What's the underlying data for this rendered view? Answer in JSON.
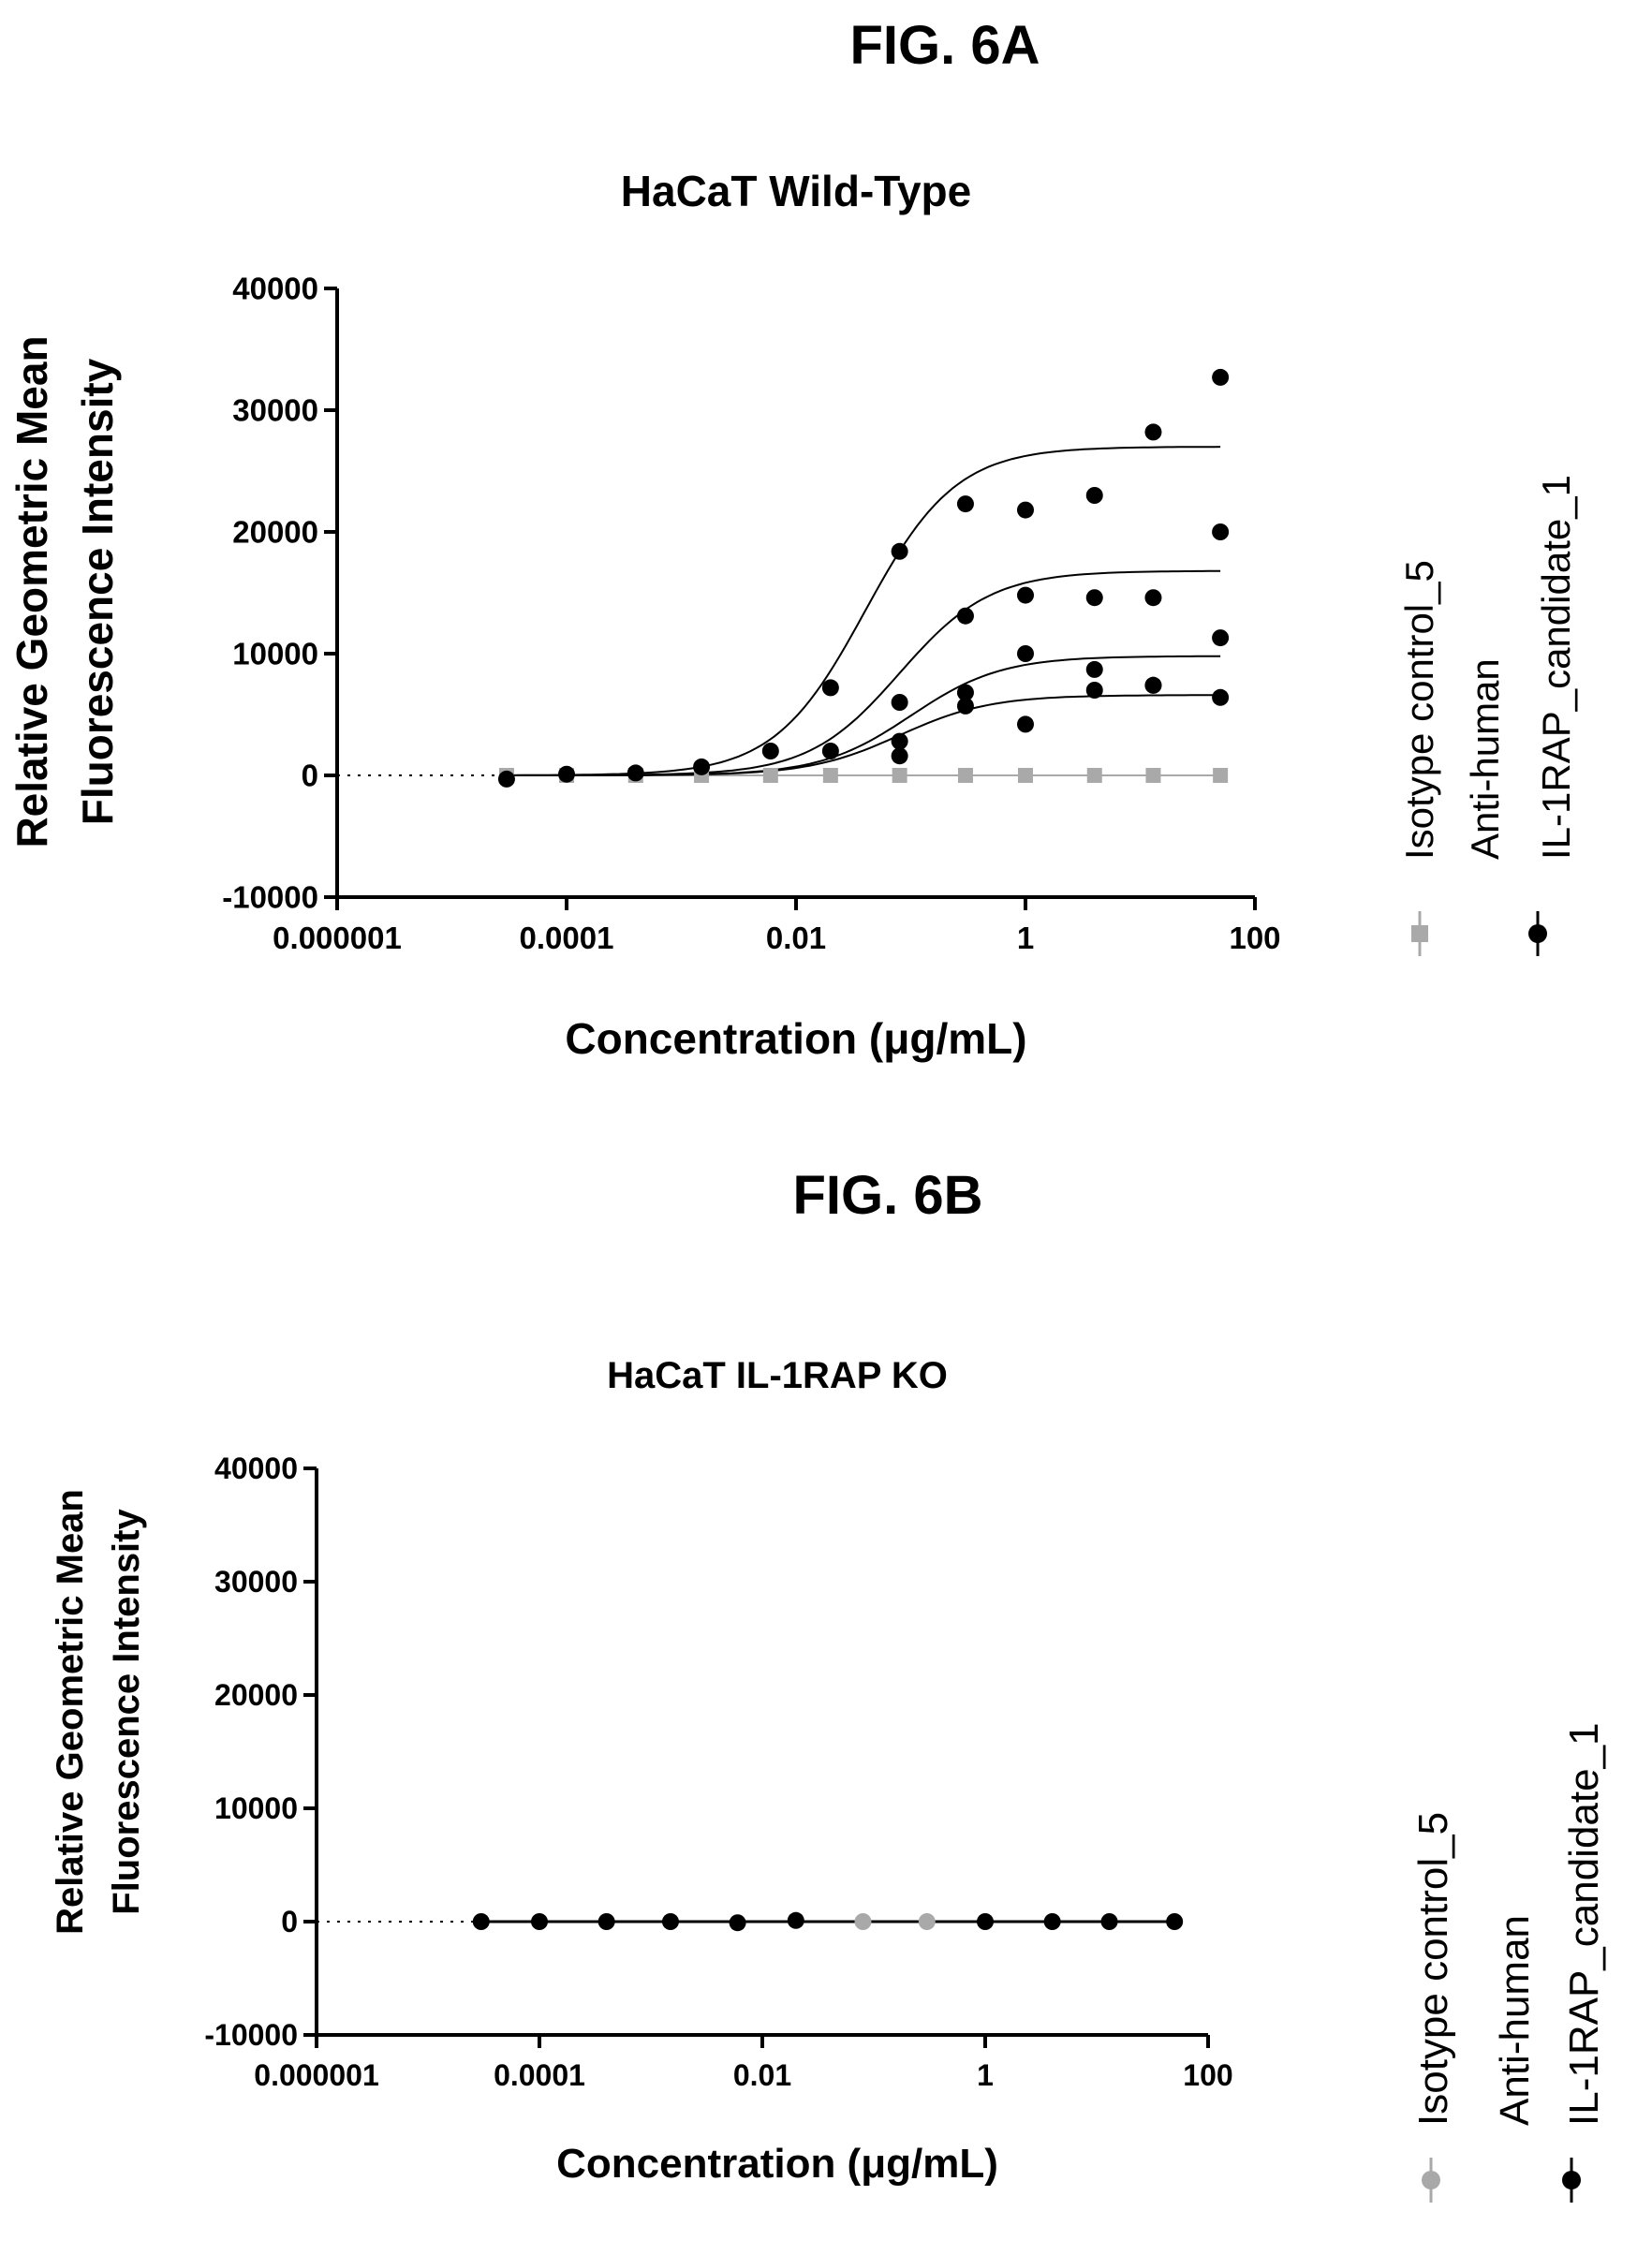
{
  "figure_labels": {
    "a": "FIG. 6A",
    "b": "FIG. 6B"
  },
  "colors": {
    "isotype": "#a9a9a9",
    "candidate": "#000000"
  },
  "chart_data": [
    {
      "type": "scatter",
      "title": "HaCaT Wild-Type",
      "xlabel": "Concentration (μg/mL)",
      "ylabel_lines": [
        "Relative Geometric Mean",
        "Fluorescence Intensity"
      ],
      "x_scale": "log",
      "xlim": [
        1e-06,
        100
      ],
      "ylim": [
        -10000,
        40000
      ],
      "x_ticks": [
        1e-06,
        0.0001,
        0.01,
        1,
        100
      ],
      "x_tick_labels": [
        "0.000001",
        "0.0001",
        "0.01",
        "1",
        "100"
      ],
      "y_ticks": [
        -10000,
        0,
        10000,
        20000,
        30000,
        40000
      ],
      "y_tick_labels": [
        "-10000",
        "0",
        "10000",
        "20000",
        "30000",
        "40000"
      ],
      "baseline": {
        "y": 0,
        "style": "dotted",
        "from_x": 1e-06,
        "to_x": 3e-05
      },
      "legend_position": "right",
      "series": [
        {
          "name": "Isotype control_5",
          "marker": "square",
          "color": "#a9a9a9",
          "x": [
            3e-05,
            0.0001,
            0.0004,
            0.0015,
            0.006,
            0.02,
            0.08,
            0.3,
            1,
            4,
            13,
            50
          ],
          "y": [
            0,
            0,
            0,
            0,
            0,
            0,
            0,
            0,
            0,
            0,
            0,
            0
          ]
        },
        {
          "name_lines": [
            "Anti-human",
            "IL-1RAP_candidate_1"
          ],
          "marker": "circle",
          "color": "#000000",
          "x": [
            3e-05,
            0.0001,
            0.0004,
            0.0015,
            0.006,
            0.02,
            0.08,
            0.3,
            1,
            4,
            13,
            50,
            0.02,
            0.08,
            0.3,
            1,
            4,
            13,
            50,
            0.08,
            0.3,
            1,
            4,
            13,
            50,
            0.08,
            0.3,
            1,
            4,
            13,
            50
          ],
          "y": [
            -300,
            100,
            200,
            700,
            2000,
            7200,
            18400,
            22300,
            21800,
            23000,
            28200,
            32700,
            2000,
            6000,
            13100,
            14800,
            14600,
            14600,
            20000,
            2800,
            6800,
            10000,
            8700,
            7400,
            11300,
            1600,
            5700,
            4200,
            7000,
            7400,
            6400
          ]
        }
      ],
      "curves": [
        {
          "top": 27000,
          "ec50": 0.04,
          "hill": 1.1
        },
        {
          "top": 16800,
          "ec50": 0.08,
          "hill": 1.1
        },
        {
          "top": 9800,
          "ec50": 0.1,
          "hill": 1.1
        },
        {
          "top": 6600,
          "ec50": 0.08,
          "hill": 1.1
        }
      ]
    },
    {
      "type": "scatter",
      "title": "HaCaT IL-1RAP KO",
      "xlabel": "Concentration (μg/mL)",
      "ylabel_lines": [
        "Relative Geometric Mean",
        "Fluorescence Intensity"
      ],
      "x_scale": "log",
      "xlim": [
        1e-06,
        100
      ],
      "ylim": [
        -10000,
        40000
      ],
      "x_ticks": [
        1e-06,
        0.0001,
        0.01,
        1,
        100
      ],
      "x_tick_labels": [
        "0.000001",
        "0.0001",
        "0.01",
        "1",
        "100"
      ],
      "y_ticks": [
        -10000,
        0,
        10000,
        20000,
        30000,
        40000
      ],
      "y_tick_labels": [
        "-10000",
        "0",
        "10000",
        "20000",
        "30000",
        "40000"
      ],
      "baseline": {
        "y": 0,
        "style": "dotted",
        "from_x": 1e-06,
        "to_x": 3e-05
      },
      "legend_position": "right",
      "series": [
        {
          "name": "Isotype control_5",
          "marker": "circle",
          "color": "#a9a9a9",
          "x": [
            0.08,
            0.3
          ],
          "y": [
            0,
            0
          ]
        },
        {
          "name_lines": [
            "Anti-human",
            "IL-1RAP_candidate_1"
          ],
          "marker": "circle",
          "color": "#000000",
          "x": [
            3e-05,
            0.0001,
            0.0004,
            0.0015,
            0.006,
            0.02,
            1,
            4,
            13,
            50
          ],
          "y": [
            0,
            0,
            0,
            0,
            -100,
            100,
            0,
            0,
            0,
            0
          ]
        }
      ],
      "curves": [
        {
          "top": 0,
          "ec50": 0.1,
          "hill": 1
        }
      ]
    }
  ]
}
